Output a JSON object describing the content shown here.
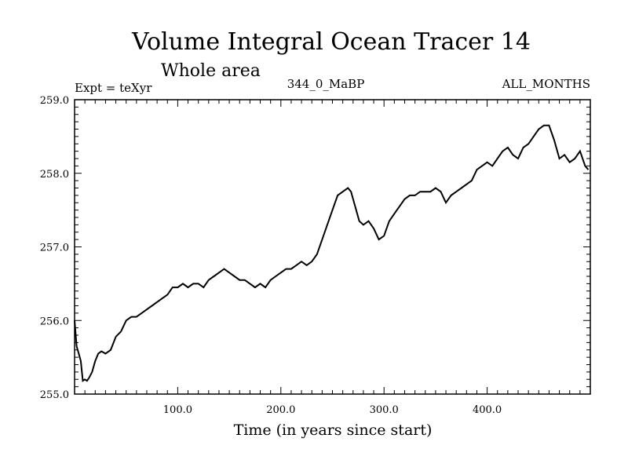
{
  "chart_data": {
    "type": "line",
    "title": "Volume Integral Ocean Tracer 14",
    "subtitle": "Whole area",
    "header_left": "Expt = teXyr",
    "header_center": "344_0_MaBP",
    "header_right": "ALL_MONTHS",
    "xlabel": "Time (in years since start)",
    "ylabel": "",
    "xlim": [
      0,
      500
    ],
    "ylim": [
      255.0,
      259.0
    ],
    "x_ticks": [
      100,
      200,
      300,
      400
    ],
    "x_tick_labels": [
      "100.0",
      "200.0",
      "300.0",
      "400.0"
    ],
    "y_ticks": [
      255,
      256,
      257,
      258,
      259
    ],
    "y_tick_labels": [
      "255.0",
      "256.0",
      "257.0",
      "258.0",
      "259.0"
    ],
    "grid": false,
    "line_color": "#000000",
    "series": [
      {
        "x": [
          0,
          2,
          4,
          6,
          8,
          10,
          12,
          14,
          17,
          20,
          23,
          26,
          30,
          35,
          40,
          45,
          50,
          55,
          60,
          65,
          70,
          75,
          80,
          85,
          90,
          95,
          100,
          105,
          110,
          115,
          120,
          125,
          130,
          135,
          140,
          145,
          150,
          155,
          160,
          165,
          170,
          175,
          180,
          185,
          190,
          195,
          200,
          205,
          210,
          215,
          220,
          225,
          230,
          235,
          240,
          245,
          250,
          255,
          260,
          265,
          268,
          272,
          276,
          280,
          285,
          290,
          295,
          300,
          305,
          310,
          315,
          320,
          325,
          330,
          335,
          340,
          345,
          350,
          355,
          360,
          365,
          370,
          375,
          380,
          385,
          390,
          395,
          400,
          405,
          410,
          415,
          420,
          425,
          430,
          435,
          440,
          445,
          450,
          455,
          460,
          465,
          470,
          475,
          480,
          485,
          490,
          495,
          498
        ],
        "y": [
          256.0,
          255.65,
          255.55,
          255.45,
          255.18,
          255.2,
          255.18,
          255.22,
          255.3,
          255.45,
          255.55,
          255.58,
          255.55,
          255.6,
          255.78,
          255.85,
          256.0,
          256.05,
          256.05,
          256.1,
          256.15,
          256.2,
          256.25,
          256.3,
          256.35,
          256.45,
          256.45,
          256.5,
          256.45,
          256.5,
          256.5,
          256.45,
          256.55,
          256.6,
          256.65,
          256.7,
          256.65,
          256.6,
          256.55,
          256.55,
          256.5,
          256.45,
          256.5,
          256.45,
          256.55,
          256.6,
          256.65,
          256.7,
          256.7,
          256.75,
          256.8,
          256.75,
          256.8,
          256.9,
          257.1,
          257.3,
          257.5,
          257.7,
          257.75,
          257.8,
          257.75,
          257.55,
          257.35,
          257.3,
          257.35,
          257.25,
          257.1,
          257.15,
          257.35,
          257.45,
          257.55,
          257.65,
          257.7,
          257.7,
          257.75,
          257.75,
          257.75,
          257.8,
          257.75,
          257.6,
          257.7,
          257.75,
          257.8,
          257.85,
          257.9,
          258.05,
          258.1,
          258.15,
          258.1,
          258.2,
          258.3,
          258.35,
          258.25,
          258.2,
          258.35,
          258.4,
          258.5,
          258.6,
          258.65,
          258.65,
          258.45,
          258.2,
          258.25,
          258.15,
          258.2,
          258.3,
          258.1,
          258.05
        ]
      }
    ]
  }
}
